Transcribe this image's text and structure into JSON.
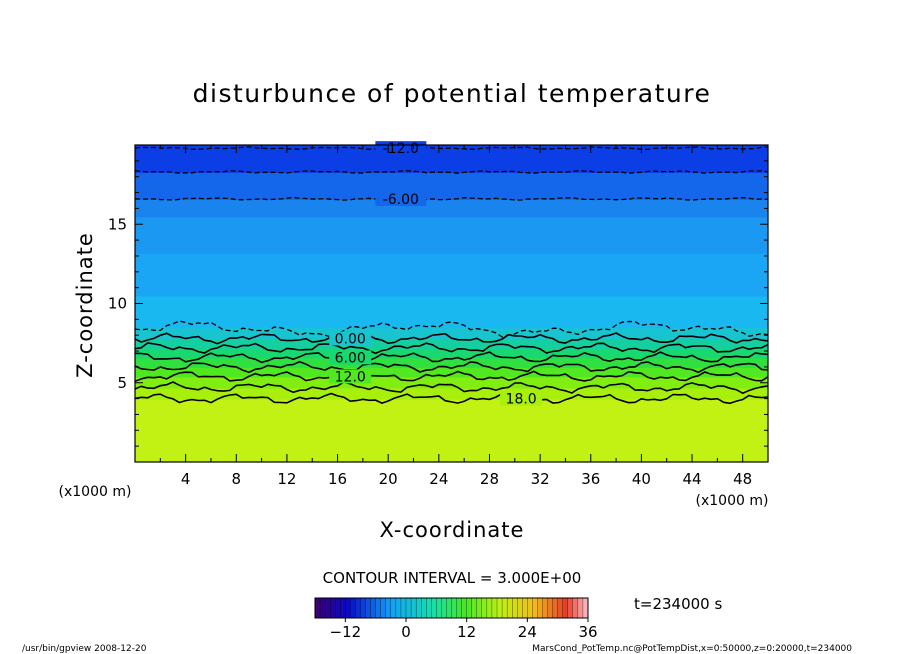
{
  "chart_data": {
    "type": "heatmap",
    "title": "disturbunce of potential temperature",
    "xlabel": "X-coordinate",
    "ylabel": "Z-coordinate",
    "x_unit_left": "(x1000 m)",
    "x_unit_right": "(x1000 m)",
    "xlim": [
      0,
      50
    ],
    "ylim": [
      0,
      20
    ],
    "x_ticks": [
      4,
      8,
      12,
      16,
      20,
      24,
      28,
      32,
      36,
      40,
      44,
      48
    ],
    "y_ticks": [
      5,
      10,
      15
    ],
    "contour_interval_label": "CONTOUR INTERVAL = 3.000E+00",
    "time_label": "t=234000 s",
    "colorbar": {
      "min": -18,
      "max": 36,
      "ticks": [
        -12,
        0,
        12,
        24,
        36
      ]
    },
    "color_bands": [
      {
        "z0": 0.0,
        "z1": 4.0,
        "value": 21,
        "color": "#c2f214"
      },
      {
        "z0": 4.0,
        "z1": 4.7,
        "value": 18,
        "color": "#a8f00c"
      },
      {
        "z0": 4.7,
        "z1": 5.4,
        "value": 15,
        "color": "#80ee10"
      },
      {
        "z0": 5.4,
        "z1": 6.0,
        "value": 12,
        "color": "#50e820"
      },
      {
        "z0": 6.0,
        "z1": 6.6,
        "value": 9,
        "color": "#2fe040"
      },
      {
        "z0": 6.6,
        "z1": 7.2,
        "value": 6,
        "color": "#18d870"
      },
      {
        "z0": 7.2,
        "z1": 7.8,
        "value": 3,
        "color": "#14d0a0"
      },
      {
        "z0": 7.8,
        "z1": 8.5,
        "value": 0,
        "color": "#18c4d0"
      },
      {
        "z0": 8.5,
        "z1": 10.5,
        "value": -3,
        "color": "#1ab8f0"
      },
      {
        "z0": 10.5,
        "z1": 13.2,
        "value": -4,
        "color": "#1aa6f4"
      },
      {
        "z0": 13.2,
        "z1": 15.5,
        "value": -5,
        "color": "#1a98f2"
      },
      {
        "z0": 15.5,
        "z1": 16.6,
        "value": -6,
        "color": "#1a84ee"
      },
      {
        "z0": 16.6,
        "z1": 18.3,
        "value": -9,
        "color": "#1466ea"
      },
      {
        "z0": 18.3,
        "z1": 20.0,
        "value": -12,
        "color": "#0c3ee6"
      }
    ],
    "contours": [
      {
        "value": -12,
        "label": "-12.0",
        "z": 19.8,
        "dashed": true,
        "label_x": 21
      },
      {
        "value": -9,
        "label": "",
        "z": 18.3,
        "dashed": true,
        "label_x": null
      },
      {
        "value": -6,
        "label": "-6.00",
        "z": 16.6,
        "dashed": true,
        "label_x": 21
      },
      {
        "value": -3,
        "label": "",
        "z": 8.4,
        "dashed": true,
        "label_x": null
      },
      {
        "value": 0,
        "label": "0.00",
        "z": 7.8,
        "dashed": false,
        "label_x": 17
      },
      {
        "value": 3,
        "label": "",
        "z": 7.2,
        "dashed": false,
        "label_x": null
      },
      {
        "value": 6,
        "label": "6.00",
        "z": 6.6,
        "dashed": false,
        "label_x": 17
      },
      {
        "value": 9,
        "label": "",
        "z": 6.0,
        "dashed": false,
        "label_x": null
      },
      {
        "value": 12,
        "label": "12.0",
        "z": 5.4,
        "dashed": false,
        "label_x": 17
      },
      {
        "value": 15,
        "label": "",
        "z": 4.7,
        "dashed": false,
        "label_x": null
      },
      {
        "value": 18,
        "label": "18.0",
        "z": 4.0,
        "dashed": false,
        "label_x": 30.5
      }
    ]
  },
  "footer": {
    "left": "/usr/bin/gpview   2008-12-20",
    "right": "MarsCond_PotTemp.nc@PotTempDist,x=0:50000,z=0:20000,t=234000"
  }
}
